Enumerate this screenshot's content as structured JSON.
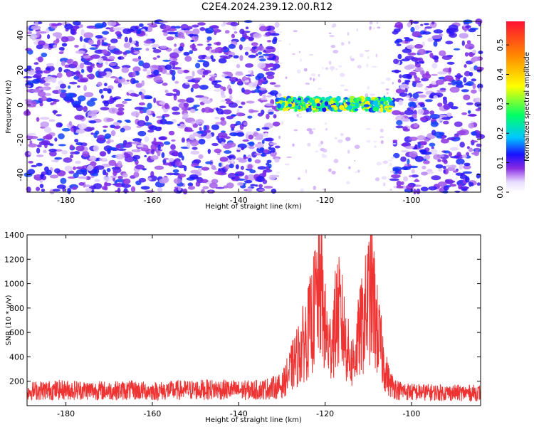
{
  "title": "C2E4.2024.239.12.00.R12",
  "chart_data": [
    {
      "type": "heatmap",
      "xlabel": "Height of straight line (km)",
      "ylabel": "Frequency (Hz)",
      "xlim": [
        -189,
        -84
      ],
      "ylim": [
        -50,
        48
      ],
      "x_ticks": [
        -180,
        -160,
        -140,
        -120,
        -100
      ],
      "y_ticks": [
        -40,
        -20,
        0,
        20,
        40
      ],
      "colorbar": {
        "label": "Normalized spectral amplitude",
        "range": [
          0,
          0.58
        ],
        "ticks": [
          0.0,
          0.1,
          0.2,
          0.3,
          0.4,
          0.5
        ]
      },
      "regions": [
        {
          "x": [
            -189,
            -131
          ],
          "freq": [
            -50,
            48
          ],
          "level": "noise",
          "amplitude_approx": 0.08
        },
        {
          "x": [
            -131,
            -104
          ],
          "freq": [
            -3,
            4
          ],
          "level": "signal",
          "amplitude_approx": 0.3
        },
        {
          "x": [
            -104,
            -84
          ],
          "freq": [
            -50,
            48
          ],
          "level": "noise",
          "amplitude_approx": 0.08
        }
      ]
    },
    {
      "type": "line",
      "xlabel": "Height of straight line (km)",
      "ylabel": "SNR (10 * v/v)",
      "xlim": [
        -189,
        -84
      ],
      "ylim": [
        0,
        1400
      ],
      "x_ticks": [
        -180,
        -160,
        -140,
        -120,
        -100
      ],
      "y_ticks": [
        200,
        400,
        600,
        800,
        1000,
        1200,
        1400
      ],
      "color": "#ee3333",
      "series": [
        {
          "x": [
            -189,
            -185,
            -180,
            -175,
            -170,
            -165,
            -160,
            -155,
            -150,
            -145,
            -140,
            -135,
            -130,
            -128,
            -126,
            -124,
            -123,
            -122,
            -121,
            -120,
            -119,
            -118,
            -117,
            -116,
            -115,
            -114,
            -113,
            -112,
            -111,
            -110,
            -109,
            -108,
            -107,
            -106,
            -105,
            -103,
            -100,
            -95,
            -90,
            -85
          ],
          "y": [
            170,
            180,
            185,
            180,
            175,
            180,
            170,
            180,
            185,
            190,
            180,
            185,
            230,
            420,
            620,
            850,
            1000,
            1250,
            1400,
            900,
            650,
            900,
            1100,
            950,
            700,
            500,
            600,
            850,
            1000,
            1250,
            1300,
            900,
            650,
            400,
            260,
            180,
            160,
            155,
            150,
            150
          ]
        }
      ]
    }
  ]
}
